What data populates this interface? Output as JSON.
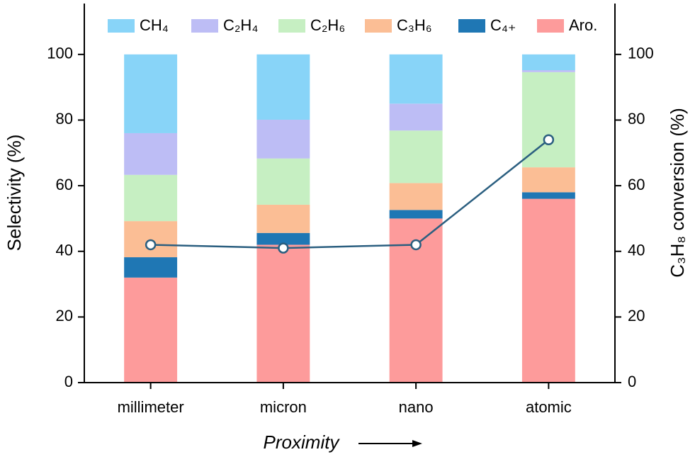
{
  "chart_data": {
    "type": "stacked-bar-line",
    "xlabel": "Proximity",
    "ylabel": "Selectivity (%)",
    "y2label": "C₃H₈ conversion (%)",
    "categories": [
      "millimeter",
      "micron",
      "nano",
      "atomic"
    ],
    "series": [
      {
        "name": "Aro.",
        "color": "#fd9b9b",
        "values": [
          32,
          42,
          50,
          56
        ]
      },
      {
        "name": "C₄₊",
        "color": "#1f77b4",
        "values": [
          6.2,
          3.6,
          2.6,
          2
        ]
      },
      {
        "name": "C₃H₆",
        "color": "#fbbe95",
        "values": [
          11,
          8.6,
          8.2,
          7.6
        ]
      },
      {
        "name": "C₂H₆",
        "color": "#c6efc2",
        "values": [
          14.1,
          14.1,
          16,
          29
        ]
      },
      {
        "name": "C₂H₄",
        "color": "#bdbdf5",
        "values": [
          12.7,
          11.8,
          8.2,
          0.6
        ]
      },
      {
        "name": "CH₄",
        "color": "#88d4f8",
        "values": [
          24,
          19.9,
          15,
          4.8
        ]
      },
      {
        "type": "line",
        "axis": "y2",
        "color": "#2b5f80",
        "values": [
          42,
          41,
          42,
          74
        ]
      }
    ],
    "ylim": [
      0,
      115.5
    ],
    "yticks": [
      0,
      20,
      40,
      60,
      80,
      100
    ],
    "y2lim": [
      0,
      115.5
    ],
    "y2ticks": [
      0,
      20,
      40,
      60,
      80,
      100
    ]
  }
}
